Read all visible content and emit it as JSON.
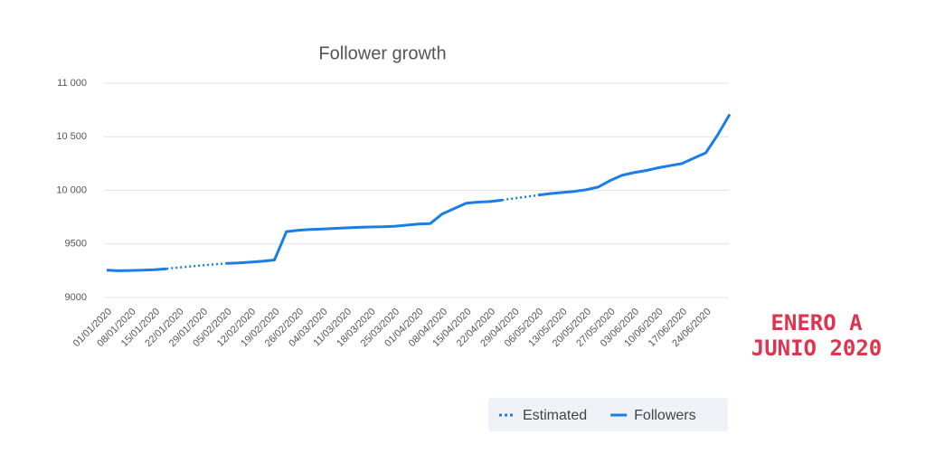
{
  "chart_data": {
    "type": "line",
    "title": "Follower growth",
    "categories": [
      "01/01/2020",
      null,
      "08/01/2020",
      null,
      "15/01/2020",
      null,
      "22/01/2020",
      null,
      "29/01/2020",
      null,
      "05/02/2020",
      null,
      "12/02/2020",
      null,
      "19/02/2020",
      null,
      "26/02/2020",
      null,
      "04/03/2020",
      null,
      "11/03/2020",
      null,
      "18/03/2020",
      null,
      "25/03/2020",
      null,
      "01/04/2020",
      null,
      "08/04/2020",
      null,
      "15/04/2020",
      null,
      "22/04/2020",
      null,
      "29/04/2020",
      null,
      "06/05/2020",
      null,
      "13/05/2020",
      null,
      "20/05/2020",
      null,
      "27/05/2020",
      null,
      "03/06/2020",
      null,
      "10/06/2020",
      null,
      "17/06/2020",
      null,
      "24/06/2020",
      null,
      null
    ],
    "series": [
      {
        "name": "Estimated",
        "color": "#1a7ee6",
        "line_style": "dotted",
        "values": [
          null,
          null,
          null,
          null,
          null,
          9268,
          9280,
          9290,
          9300,
          9310,
          9318,
          null,
          null,
          null,
          null,
          null,
          null,
          null,
          null,
          null,
          null,
          null,
          null,
          null,
          null,
          null,
          null,
          null,
          null,
          null,
          null,
          null,
          null,
          9910,
          9925,
          9940,
          9955,
          null,
          null,
          null,
          null,
          null,
          null,
          null,
          null,
          null,
          null,
          null,
          null,
          null,
          null,
          null,
          null
        ]
      },
      {
        "name": "Followers",
        "color": "#1a7ee6",
        "line_style": "solid",
        "values": [
          9255,
          9250,
          9252,
          9255,
          9260,
          9268,
          null,
          null,
          null,
          null,
          9318,
          9322,
          9330,
          9338,
          9350,
          9615,
          9628,
          9635,
          9640,
          9645,
          9650,
          9655,
          9658,
          9660,
          9665,
          9675,
          9685,
          9690,
          9780,
          9830,
          9880,
          9890,
          9895,
          9910,
          null,
          null,
          9955,
          9970,
          9980,
          9990,
          10005,
          10030,
          10090,
          10140,
          10165,
          10185,
          10210,
          10230,
          10250,
          10300,
          10350,
          10520,
          10710
        ]
      }
    ],
    "ylim": [
      9000,
      11000
    ],
    "yticks": [
      9000,
      9500,
      {
        "value": 10000,
        "label": "10 000"
      },
      {
        "value": 10500,
        "label": "10 500"
      },
      {
        "value": 11000,
        "label": "11 000"
      }
    ],
    "grid": true,
    "legend": "bottom-right",
    "annotation": [
      "ENERO A",
      "JUNIO 2020"
    ]
  }
}
